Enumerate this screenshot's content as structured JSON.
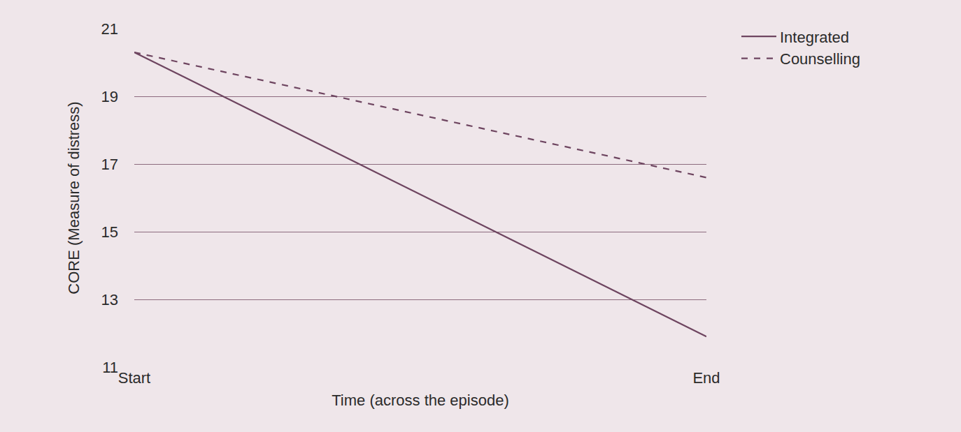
{
  "chart_data": {
    "type": "line",
    "x_label": "Time (across the episode)",
    "y_label": "CORE (Measure of distress)",
    "categories": [
      "Start",
      "End"
    ],
    "series": [
      {
        "name": "Integrated",
        "color": "#6e4560",
        "line_style": "solid",
        "values": [
          20.3,
          11.9
        ]
      },
      {
        "name": "Counselling",
        "color": "#6e4560",
        "line_style": "dash",
        "values": [
          20.3,
          16.6
        ]
      }
    ],
    "ylim": [
      11,
      21
    ],
    "yticks": [
      11,
      13,
      15,
      17,
      19,
      21
    ],
    "grid": true,
    "legend": "top right"
  }
}
